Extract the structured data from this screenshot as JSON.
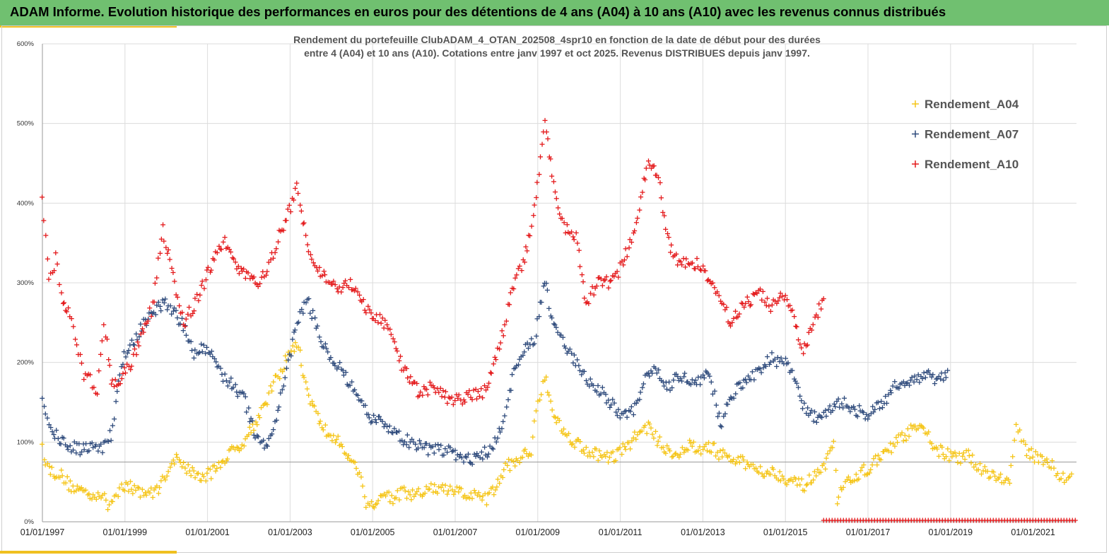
{
  "header": {
    "title": "ADAM Informe. Evolution historique des performances en euros pour des détentions de 4 ans (A04) à 10 ans (A10) avec les revenus connus distribués"
  },
  "chart_data": {
    "type": "scatter",
    "title_lines": [
      "Rendement du portefeuille ClubADAM_4_OTAN_202508_4spr10  en fonction de la date de début pour des durées",
      "entre 4 (A04) et 10 ans (A10). Cotations entre janv 1997 et oct 2025. Revenus DISTRIBUES depuis janv 1997."
    ],
    "x_axis": {
      "type": "date",
      "range": [
        "1997-01-01",
        "2021-10-01"
      ],
      "ticks": [
        "01/01/1997",
        "01/01/1999",
        "01/01/2001",
        "01/01/2003",
        "01/01/2005",
        "01/01/2007",
        "01/01/2009",
        "01/01/2011",
        "01/01/2013",
        "01/01/2015",
        "01/01/2017",
        "01/01/2019",
        "01/01/2021"
      ]
    },
    "y_axis": {
      "unit": "%",
      "range": [
        0,
        600
      ],
      "ticks": [
        "0%",
        "100%",
        "200%",
        "300%",
        "400%",
        "500%",
        "600%"
      ]
    },
    "reference_line": 75,
    "grid": true,
    "legend_position": "top-right",
    "series": [
      {
        "name": "Rendement_A04",
        "color": "#f5c518",
        "points": [
          [
            "1997-01-01",
            92
          ],
          [
            "1997-03-01",
            65
          ],
          [
            "1997-06-01",
            60
          ],
          [
            "1997-09-01",
            45
          ],
          [
            "1997-12-01",
            40
          ],
          [
            "1998-03-01",
            35
          ],
          [
            "1998-06-01",
            35
          ],
          [
            "1998-08-01",
            20
          ],
          [
            "1998-10-01",
            30
          ],
          [
            "1998-12-01",
            48
          ],
          [
            "1999-03-01",
            42
          ],
          [
            "1999-06-01",
            38
          ],
          [
            "1999-09-01",
            35
          ],
          [
            "1999-12-01",
            50
          ],
          [
            "2000-03-01",
            80
          ],
          [
            "2000-06-01",
            72
          ],
          [
            "2000-09-01",
            60
          ],
          [
            "2000-12-01",
            55
          ],
          [
            "2001-03-01",
            65
          ],
          [
            "2001-06-01",
            80
          ],
          [
            "2001-09-01",
            90
          ],
          [
            "2001-12-01",
            105
          ],
          [
            "2002-03-01",
            125
          ],
          [
            "2002-06-01",
            150
          ],
          [
            "2002-09-01",
            180
          ],
          [
            "2002-12-01",
            205
          ],
          [
            "2003-03-01",
            225
          ],
          [
            "2003-06-01",
            165
          ],
          [
            "2003-09-01",
            130
          ],
          [
            "2003-12-01",
            110
          ],
          [
            "2004-03-01",
            100
          ],
          [
            "2004-06-01",
            85
          ],
          [
            "2004-09-01",
            60
          ],
          [
            "2004-11-01",
            25
          ],
          [
            "2005-01-01",
            20
          ],
          [
            "2005-04-01",
            35
          ],
          [
            "2005-07-01",
            30
          ],
          [
            "2005-10-01",
            36
          ],
          [
            "2006-01-01",
            32
          ],
          [
            "2006-06-01",
            42
          ],
          [
            "2006-12-01",
            38
          ],
          [
            "2007-06-01",
            33
          ],
          [
            "2007-10-01",
            28
          ],
          [
            "2008-01-01",
            45
          ],
          [
            "2008-04-01",
            70
          ],
          [
            "2008-08-01",
            80
          ],
          [
            "2008-11-01",
            90
          ],
          [
            "2009-01-01",
            150
          ],
          [
            "2009-03-01",
            185
          ],
          [
            "2009-06-01",
            130
          ],
          [
            "2009-09-01",
            110
          ],
          [
            "2009-12-01",
            100
          ],
          [
            "2010-03-01",
            90
          ],
          [
            "2010-06-01",
            85
          ],
          [
            "2010-09-01",
            80
          ],
          [
            "2010-12-01",
            85
          ],
          [
            "2011-03-01",
            95
          ],
          [
            "2011-06-01",
            110
          ],
          [
            "2011-09-01",
            120
          ],
          [
            "2011-12-01",
            100
          ],
          [
            "2012-03-01",
            90
          ],
          [
            "2012-06-01",
            85
          ],
          [
            "2012-09-01",
            95
          ],
          [
            "2012-12-01",
            90
          ],
          [
            "2013-03-01",
            95
          ],
          [
            "2013-06-01",
            85
          ],
          [
            "2013-09-01",
            78
          ],
          [
            "2013-12-01",
            75
          ],
          [
            "2014-03-01",
            70
          ],
          [
            "2014-06-01",
            65
          ],
          [
            "2014-09-01",
            62
          ],
          [
            "2014-12-01",
            58
          ],
          [
            "2015-03-01",
            50
          ],
          [
            "2015-06-01",
            45
          ],
          [
            "2015-09-01",
            55
          ],
          [
            "2015-12-01",
            65
          ],
          [
            "2016-03-01",
            95
          ],
          [
            "2016-04-01",
            30
          ],
          [
            "2016-08-01",
            55
          ],
          [
            "2016-12-01",
            65
          ],
          [
            "2017-03-01",
            75
          ],
          [
            "2017-06-01",
            85
          ],
          [
            "2017-09-01",
            100
          ],
          [
            "2017-12-01",
            110
          ],
          [
            "2018-03-01",
            118
          ],
          [
            "2018-06-01",
            110
          ],
          [
            "2018-09-01",
            90
          ],
          [
            "2018-12-01",
            85
          ],
          [
            "2019-03-01",
            78
          ],
          [
            "2019-06-01",
            82
          ],
          [
            "2019-09-01",
            70
          ],
          [
            "2019-12-01",
            62
          ],
          [
            "2020-03-01",
            55
          ],
          [
            "2020-06-01",
            50
          ],
          [
            "2020-08-01",
            120
          ],
          [
            "2020-10-01",
            95
          ],
          [
            "2020-12-01",
            85
          ],
          [
            "2021-03-01",
            80
          ],
          [
            "2021-06-01",
            75
          ],
          [
            "2021-08-01",
            55
          ],
          [
            "2021-10-01",
            55
          ],
          [
            "2021-12-01",
            60
          ]
        ]
      },
      {
        "name": "Rendement_A07",
        "color": "#2f4b7c",
        "points": [
          [
            "1997-01-01",
            150
          ],
          [
            "1997-03-01",
            118
          ],
          [
            "1997-06-01",
            105
          ],
          [
            "1997-09-01",
            95
          ],
          [
            "1997-12-01",
            90
          ],
          [
            "1998-03-01",
            98
          ],
          [
            "1998-06-01",
            92
          ],
          [
            "1998-09-01",
            110
          ],
          [
            "1998-12-01",
            200
          ],
          [
            "1999-03-01",
            220
          ],
          [
            "1999-06-01",
            245
          ],
          [
            "1999-09-01",
            260
          ],
          [
            "1999-12-01",
            275
          ],
          [
            "2000-03-01",
            265
          ],
          [
            "2000-06-01",
            245
          ],
          [
            "2000-09-01",
            210
          ],
          [
            "2000-12-01",
            220
          ],
          [
            "2001-03-01",
            205
          ],
          [
            "2001-06-01",
            180
          ],
          [
            "2001-09-01",
            170
          ],
          [
            "2001-12-01",
            150
          ],
          [
            "2002-03-01",
            110
          ],
          [
            "2002-06-01",
            95
          ],
          [
            "2002-09-01",
            130
          ],
          [
            "2002-12-01",
            190
          ],
          [
            "2003-03-01",
            250
          ],
          [
            "2003-06-01",
            280
          ],
          [
            "2003-09-01",
            240
          ],
          [
            "2003-12-01",
            210
          ],
          [
            "2004-03-01",
            195
          ],
          [
            "2004-06-01",
            175
          ],
          [
            "2004-09-01",
            150
          ],
          [
            "2004-12-01",
            130
          ],
          [
            "2005-03-01",
            125
          ],
          [
            "2005-06-01",
            120
          ],
          [
            "2005-09-01",
            105
          ],
          [
            "2005-12-01",
            100
          ],
          [
            "2006-03-01",
            95
          ],
          [
            "2006-06-01",
            90
          ],
          [
            "2006-12-01",
            88
          ],
          [
            "2007-03-01",
            82
          ],
          [
            "2007-06-01",
            78
          ],
          [
            "2007-09-01",
            85
          ],
          [
            "2007-12-01",
            92
          ],
          [
            "2008-03-01",
            130
          ],
          [
            "2008-06-01",
            185
          ],
          [
            "2008-09-01",
            215
          ],
          [
            "2008-12-01",
            230
          ],
          [
            "2009-03-01",
            300
          ],
          [
            "2009-06-01",
            240
          ],
          [
            "2009-09-01",
            220
          ],
          [
            "2009-12-01",
            200
          ],
          [
            "2010-03-01",
            180
          ],
          [
            "2010-06-01",
            170
          ],
          [
            "2010-09-01",
            155
          ],
          [
            "2010-12-01",
            140
          ],
          [
            "2011-03-01",
            130
          ],
          [
            "2011-06-01",
            150
          ],
          [
            "2011-09-01",
            190
          ],
          [
            "2011-12-01",
            185
          ],
          [
            "2012-03-01",
            170
          ],
          [
            "2012-06-01",
            185
          ],
          [
            "2012-09-01",
            175
          ],
          [
            "2012-12-01",
            180
          ],
          [
            "2013-03-01",
            185
          ],
          [
            "2013-06-01",
            120
          ],
          [
            "2013-09-01",
            160
          ],
          [
            "2013-12-01",
            170
          ],
          [
            "2014-03-01",
            180
          ],
          [
            "2014-06-01",
            195
          ],
          [
            "2014-09-01",
            205
          ],
          [
            "2014-12-01",
            200
          ],
          [
            "2015-03-01",
            190
          ],
          [
            "2015-06-01",
            145
          ],
          [
            "2015-09-01",
            130
          ],
          [
            "2015-12-01",
            135
          ],
          [
            "2016-03-01",
            145
          ],
          [
            "2016-06-01",
            150
          ],
          [
            "2016-09-01",
            140
          ],
          [
            "2016-12-01",
            135
          ],
          [
            "2017-03-01",
            140
          ],
          [
            "2017-06-01",
            150
          ],
          [
            "2017-09-01",
            175
          ],
          [
            "2017-12-01",
            175
          ],
          [
            "2018-03-01",
            180
          ],
          [
            "2018-06-01",
            185
          ],
          [
            "2018-09-01",
            175
          ],
          [
            "2018-12-01",
            190
          ]
        ]
      },
      {
        "name": "Rendement_A10",
        "color": "#e41a1c",
        "points": [
          [
            "1997-01-01",
            405
          ],
          [
            "1997-03-01",
            300
          ],
          [
            "1997-05-01",
            330
          ],
          [
            "1997-07-01",
            280
          ],
          [
            "1997-09-01",
            260
          ],
          [
            "1997-11-01",
            220
          ],
          [
            "1998-01-01",
            185
          ],
          [
            "1998-03-01",
            180
          ],
          [
            "1998-05-01",
            160
          ],
          [
            "1998-07-01",
            255
          ],
          [
            "1998-09-01",
            175
          ],
          [
            "1998-12-01",
            180
          ],
          [
            "1999-03-01",
            200
          ],
          [
            "1999-06-01",
            240
          ],
          [
            "1999-09-01",
            270
          ],
          [
            "1999-12-01",
            365
          ],
          [
            "2000-03-01",
            310
          ],
          [
            "2000-06-01",
            250
          ],
          [
            "2000-09-01",
            270
          ],
          [
            "2000-12-01",
            300
          ],
          [
            "2001-03-01",
            330
          ],
          [
            "2001-06-01",
            350
          ],
          [
            "2001-09-01",
            320
          ],
          [
            "2001-12-01",
            310
          ],
          [
            "2002-03-01",
            300
          ],
          [
            "2002-06-01",
            310
          ],
          [
            "2002-09-01",
            350
          ],
          [
            "2002-12-01",
            380
          ],
          [
            "2003-03-01",
            420
          ],
          [
            "2003-06-01",
            350
          ],
          [
            "2003-09-01",
            320
          ],
          [
            "2003-12-01",
            300
          ],
          [
            "2004-03-01",
            290
          ],
          [
            "2004-06-01",
            300
          ],
          [
            "2004-09-01",
            280
          ],
          [
            "2004-12-01",
            260
          ],
          [
            "2005-03-01",
            255
          ],
          [
            "2005-06-01",
            240
          ],
          [
            "2005-09-01",
            200
          ],
          [
            "2005-12-01",
            175
          ],
          [
            "2006-03-01",
            160
          ],
          [
            "2006-06-01",
            170
          ],
          [
            "2006-09-01",
            160
          ],
          [
            "2006-12-01",
            150
          ],
          [
            "2007-03-01",
            155
          ],
          [
            "2007-06-01",
            160
          ],
          [
            "2007-09-01",
            160
          ],
          [
            "2007-12-01",
            195
          ],
          [
            "2008-03-01",
            240
          ],
          [
            "2008-06-01",
            300
          ],
          [
            "2008-09-01",
            330
          ],
          [
            "2008-12-01",
            390
          ],
          [
            "2009-03-01",
            500
          ],
          [
            "2009-06-01",
            410
          ],
          [
            "2009-09-01",
            370
          ],
          [
            "2009-12-01",
            360
          ],
          [
            "2010-03-01",
            270
          ],
          [
            "2010-06-01",
            300
          ],
          [
            "2010-09-01",
            300
          ],
          [
            "2010-12-01",
            310
          ],
          [
            "2011-03-01",
            340
          ],
          [
            "2011-06-01",
            380
          ],
          [
            "2011-09-01",
            460
          ],
          [
            "2011-12-01",
            430
          ],
          [
            "2012-03-01",
            350
          ],
          [
            "2012-06-01",
            320
          ],
          [
            "2012-09-01",
            330
          ],
          [
            "2012-12-01",
            320
          ],
          [
            "2013-03-01",
            300
          ],
          [
            "2013-06-01",
            280
          ],
          [
            "2013-09-01",
            250
          ],
          [
            "2013-12-01",
            270
          ],
          [
            "2014-03-01",
            280
          ],
          [
            "2014-06-01",
            285
          ],
          [
            "2014-09-01",
            270
          ],
          [
            "2014-12-01",
            290
          ],
          [
            "2015-03-01",
            260
          ],
          [
            "2015-06-01",
            210
          ],
          [
            "2015-09-01",
            250
          ],
          [
            "2015-12-01",
            280
          ]
        ]
      }
    ]
  }
}
